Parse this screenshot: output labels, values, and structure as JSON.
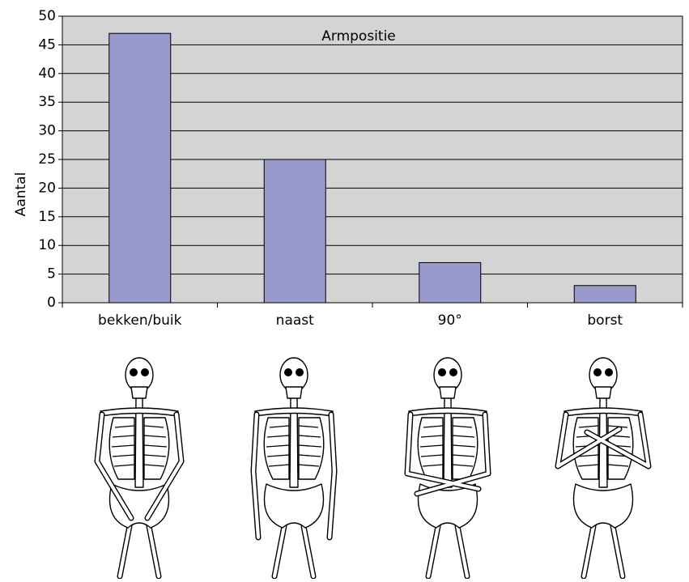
{
  "chart_data": {
    "type": "bar",
    "title": "Armpositie",
    "y_label": "Aantal",
    "categories": [
      "bekken/buik",
      "naast",
      "90°",
      "borst"
    ],
    "values": [
      47,
      25,
      7,
      3
    ],
    "color": "#9999cc",
    "ylim": [
      0,
      50
    ],
    "yticks": [
      0,
      5,
      10,
      15,
      20,
      25,
      30,
      35,
      40,
      45,
      50
    ],
    "grid": true
  }
}
